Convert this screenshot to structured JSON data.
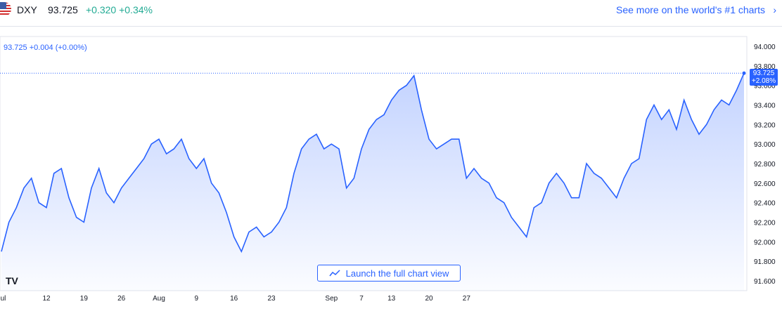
{
  "header": {
    "symbol": "DXY",
    "price": "93.725",
    "change": "+0.320 +0.34%",
    "more_link": "See more on the world's #1 charts",
    "chevron_icon": "chevron-right-icon",
    "flag_icon": "us-flag-icon"
  },
  "legend_text": "93.725 +0.004 (+0.00%)",
  "launch_label": "Launch the full chart view",
  "logo_text": "TV",
  "price_tag": {
    "value": "93.725",
    "pct": "+2.08%"
  },
  "colors": {
    "line": "#2962ff",
    "positive": "#22ab94",
    "accent": "#2962ff"
  },
  "chart_data": {
    "type": "area",
    "title": "",
    "xlabel": "",
    "ylabel": "",
    "ylim": [
      91.5,
      94.1
    ],
    "y_ticks": [
      "94.000",
      "93.800",
      "93.600",
      "93.400",
      "93.200",
      "93.000",
      "92.800",
      "92.600",
      "92.400",
      "92.200",
      "92.000",
      "91.800",
      "91.600"
    ],
    "x_ticks": [
      {
        "label": "Jul",
        "i": 0
      },
      {
        "label": "12",
        "i": 6
      },
      {
        "label": "19",
        "i": 11
      },
      {
        "label": "26",
        "i": 16
      },
      {
        "label": "Aug",
        "i": 21
      },
      {
        "label": "9",
        "i": 26
      },
      {
        "label": "16",
        "i": 31
      },
      {
        "label": "23",
        "i": 36
      },
      {
        "label": "Sep",
        "i": 44
      },
      {
        "label": "7",
        "i": 48
      },
      {
        "label": "13",
        "i": 52
      },
      {
        "label": "20",
        "i": 57
      },
      {
        "label": "27",
        "i": 62
      }
    ],
    "series": [
      {
        "values": [
          91.9,
          92.2,
          92.35,
          92.55,
          92.65,
          92.4,
          92.35,
          92.7,
          92.75,
          92.45,
          92.25,
          92.2,
          92.55,
          92.75,
          92.5,
          92.4,
          92.55,
          92.65,
          92.75,
          92.85,
          93.0,
          93.05,
          92.9,
          92.95,
          93.05,
          92.85,
          92.75,
          92.85,
          92.6,
          92.5,
          92.3,
          92.05,
          91.9,
          92.1,
          92.15,
          92.05,
          92.1,
          92.2,
          92.35,
          92.7,
          92.95,
          93.05,
          93.1,
          92.95,
          93.0,
          92.95,
          92.55,
          92.65,
          92.95,
          93.15,
          93.25,
          93.3,
          93.45,
          93.55,
          93.6,
          93.7,
          93.35,
          93.05,
          92.95,
          93.0,
          93.05,
          93.05,
          92.65,
          92.75,
          92.65,
          92.6,
          92.45,
          92.4,
          92.25,
          92.15,
          92.05,
          92.35,
          92.4,
          92.6,
          92.7,
          92.6,
          92.45,
          92.45,
          92.8,
          92.7,
          92.65,
          92.55,
          92.45,
          92.65,
          92.8,
          92.85,
          93.25,
          93.4,
          93.25,
          93.35,
          93.15,
          93.45,
          93.25,
          93.1,
          93.2,
          93.35,
          93.45,
          93.4,
          93.55,
          93.725
        ]
      }
    ]
  }
}
